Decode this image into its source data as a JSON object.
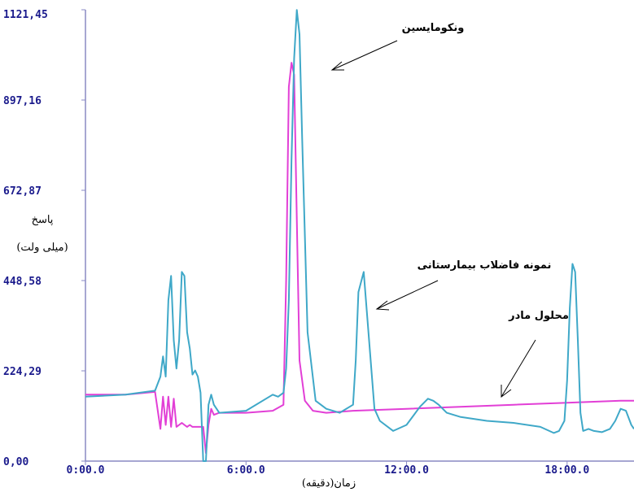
{
  "chart_data": {
    "type": "line",
    "title": "",
    "xlabel": "زمان(دقیقه)",
    "ylabel_line1": "پاسخ",
    "ylabel_line2": "(میلی ولت)",
    "xlim": [
      0,
      20.5
    ],
    "ylim": [
      0,
      1121.45
    ],
    "x_ticks": [
      "0:00.0",
      "6:00.0",
      "12:00.0",
      "18:00.0"
    ],
    "x_tick_values": [
      0,
      6,
      12,
      18
    ],
    "y_ticks": [
      "0,00",
      "224,29",
      "448,58",
      "672,87",
      "897,16",
      "1121,45"
    ],
    "y_tick_values": [
      0,
      224.29,
      448.58,
      672.87,
      897.16,
      1121.45
    ],
    "grid": false,
    "series": [
      {
        "name": "نمونه فاضلاب بیمارستانی",
        "color": "#3fa8c8",
        "x": [
          0,
          1.5,
          2.6,
          2.8,
          2.9,
          3.0,
          3.1,
          3.2,
          3.3,
          3.4,
          3.5,
          3.6,
          3.7,
          3.8,
          3.9,
          4.0,
          4.1,
          4.2,
          4.3,
          4.4,
          4.5,
          4.6,
          4.7,
          4.8,
          5.0,
          6.0,
          7.0,
          7.2,
          7.4,
          7.5,
          7.6,
          7.7,
          7.8,
          7.9,
          8.0,
          8.1,
          8.3,
          8.6,
          9.0,
          9.5,
          10.0,
          10.1,
          10.2,
          10.4,
          10.6,
          10.8,
          11.0,
          11.5,
          12.0,
          12.5,
          12.8,
          13.0,
          13.2,
          13.5,
          14.0,
          15.0,
          16.0,
          17.0,
          17.5,
          17.7,
          17.9,
          18.0,
          18.1,
          18.2,
          18.3,
          18.4,
          18.5,
          18.6,
          18.8,
          19.0,
          19.3,
          19.6,
          19.8,
          20.0,
          20.2,
          20.4,
          20.5
        ],
        "y": [
          160,
          165,
          175,
          210,
          260,
          210,
          400,
          460,
          300,
          230,
          300,
          470,
          460,
          320,
          280,
          215,
          225,
          210,
          170,
          0,
          0,
          140,
          165,
          140,
          120,
          125,
          165,
          160,
          170,
          230,
          400,
          750,
          1000,
          1121,
          1060,
          800,
          320,
          150,
          130,
          120,
          140,
          250,
          420,
          470,
          300,
          130,
          100,
          75,
          90,
          135,
          155,
          150,
          140,
          120,
          110,
          100,
          95,
          85,
          70,
          75,
          100,
          200,
          380,
          490,
          470,
          300,
          120,
          75,
          80,
          75,
          72,
          80,
          100,
          130,
          125,
          90,
          80
        ]
      },
      {
        "name": "محلول مادر",
        "color": "#e23fd6",
        "x": [
          0,
          1.5,
          2.6,
          2.8,
          2.9,
          3.0,
          3.1,
          3.2,
          3.3,
          3.4,
          3.6,
          3.7,
          3.8,
          3.9,
          4.0,
          4.4,
          4.5,
          4.6,
          4.7,
          4.8,
          5.0,
          6.0,
          7.0,
          7.4,
          7.5,
          7.6,
          7.7,
          7.8,
          7.9,
          8.0,
          8.2,
          8.5,
          9.0,
          10.0,
          12.0,
          14.0,
          16.0,
          18.0,
          20.0,
          20.5
        ],
        "y": [
          165,
          165,
          172,
          80,
          160,
          90,
          160,
          85,
          155,
          85,
          95,
          90,
          85,
          90,
          85,
          85,
          20,
          90,
          130,
          115,
          120,
          120,
          125,
          140,
          450,
          930,
          990,
          960,
          600,
          250,
          150,
          125,
          120,
          125,
          130,
          135,
          140,
          145,
          150,
          150
        ]
      }
    ],
    "annotations": [
      {
        "text": "ونکومایسین",
        "target": "peak-7.9"
      },
      {
        "text": "نمونه فاضلاب بیمارستانی",
        "target": "peak-10.4"
      },
      {
        "text": "محلول مادر",
        "target": "baseline-15.5"
      }
    ]
  }
}
